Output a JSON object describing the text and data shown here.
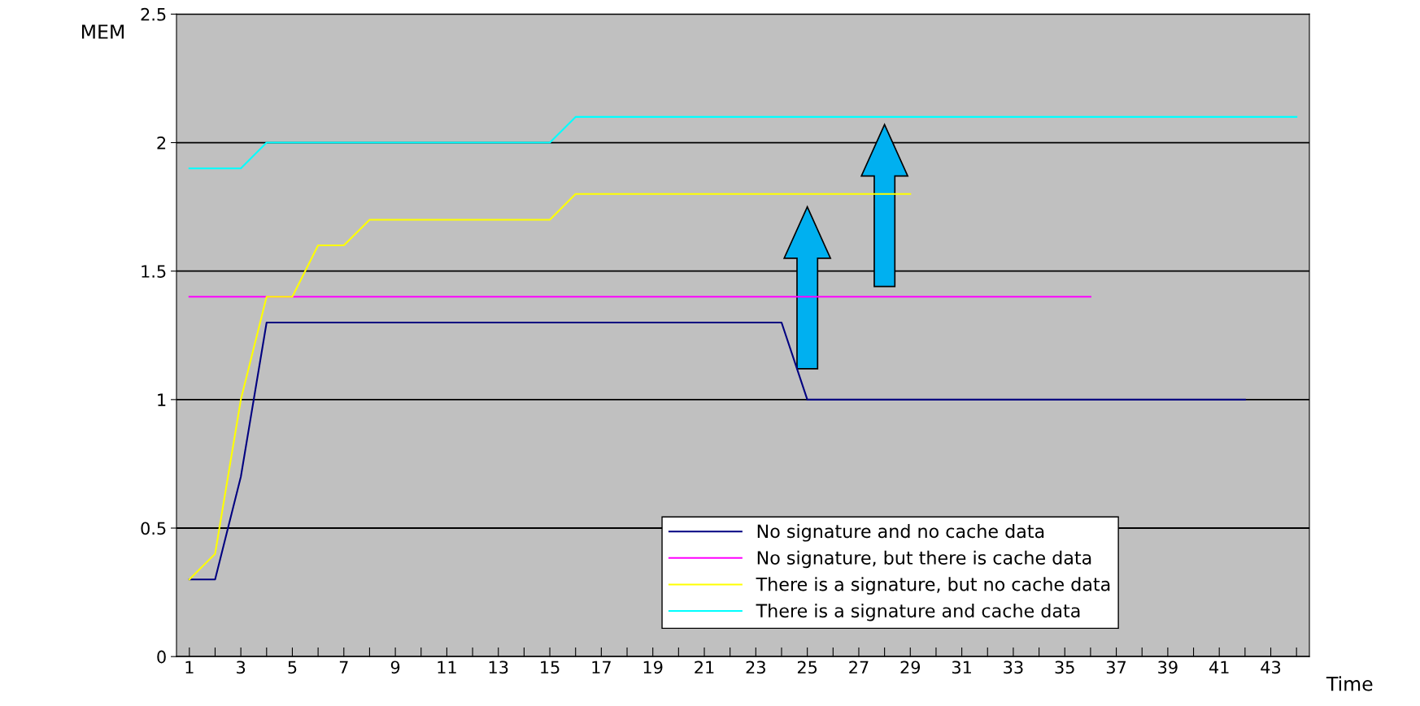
{
  "chart_data": {
    "type": "line",
    "xlabel": "Time",
    "ylabel": "MEM",
    "categories": [
      "1",
      null,
      "3",
      null,
      "5",
      null,
      "7",
      null,
      "9",
      null,
      "11",
      null,
      "13",
      null,
      "15",
      null,
      "17",
      null,
      "19",
      null,
      "21",
      null,
      "23",
      null,
      "25",
      null,
      "27",
      null,
      "29",
      null,
      "31",
      null,
      "33",
      null,
      "35",
      null,
      "37",
      null,
      "39",
      null,
      "41",
      null,
      "43",
      null
    ],
    "series": [
      {
        "name": "No signature and no cache data",
        "color": "#000080",
        "values": [
          0.3,
          0.3,
          0.7,
          1.3,
          1.3,
          1.3,
          1.3,
          1.3,
          1.3,
          1.3,
          1.3,
          1.3,
          1.3,
          1.3,
          1.3,
          1.3,
          1.3,
          1.3,
          1.3,
          1.3,
          1.3,
          1.3,
          1.3,
          1.3,
          1.0,
          1.0,
          1.0,
          1.0,
          1.0,
          1.0,
          1.0,
          1.0,
          1.0,
          1.0,
          1.0,
          1.0,
          1.0,
          1.0,
          1.0,
          1.0,
          1.0,
          1.0,
          null,
          null
        ]
      },
      {
        "name": "No signature, but there is cache data",
        "color": "#ff00ff",
        "values": [
          1.4,
          1.4,
          1.4,
          1.4,
          1.4,
          1.4,
          1.4,
          1.4,
          1.4,
          1.4,
          1.4,
          1.4,
          1.4,
          1.4,
          1.4,
          1.4,
          1.4,
          1.4,
          1.4,
          1.4,
          1.4,
          1.4,
          1.4,
          1.4,
          1.4,
          1.4,
          1.4,
          1.4,
          1.4,
          1.4,
          1.4,
          1.4,
          1.4,
          1.4,
          1.4,
          1.4,
          null,
          null,
          null,
          null,
          null,
          null,
          null,
          null
        ]
      },
      {
        "name": "There is a signature, but no cache data",
        "color": "#ffff00",
        "values": [
          0.3,
          0.4,
          1.0,
          1.4,
          1.4,
          1.6,
          1.6,
          1.7,
          1.7,
          1.7,
          1.7,
          1.7,
          1.7,
          1.7,
          1.7,
          1.8,
          1.8,
          1.8,
          1.8,
          1.8,
          1.8,
          1.8,
          1.8,
          1.8,
          1.8,
          1.8,
          1.8,
          1.8,
          1.8,
          null,
          null,
          null,
          null,
          null,
          null,
          null,
          null,
          null,
          null,
          null,
          null,
          null,
          null,
          null
        ]
      },
      {
        "name": "There is a signature and cache data",
        "color": "#00ffff",
        "values": [
          1.9,
          1.9,
          1.9,
          2.0,
          2.0,
          2.0,
          2.0,
          2.0,
          2.0,
          2.0,
          2.0,
          2.0,
          2.0,
          2.0,
          2.0,
          2.1,
          2.1,
          2.1,
          2.1,
          2.1,
          2.1,
          2.1,
          2.1,
          2.1,
          2.1,
          2.1,
          2.1,
          2.1,
          2.1,
          2.1,
          2.1,
          2.1,
          2.1,
          2.1,
          2.1,
          2.1,
          2.1,
          2.1,
          2.1,
          2.1,
          2.1,
          2.1,
          2.1,
          2.1
        ]
      }
    ],
    "ylim": [
      0,
      2.5
    ],
    "yticks": [
      0,
      0.5,
      1,
      1.5,
      2,
      2.5
    ],
    "grid": "y",
    "legend": "bottom",
    "marker": "none",
    "line_style": "solid"
  }
}
